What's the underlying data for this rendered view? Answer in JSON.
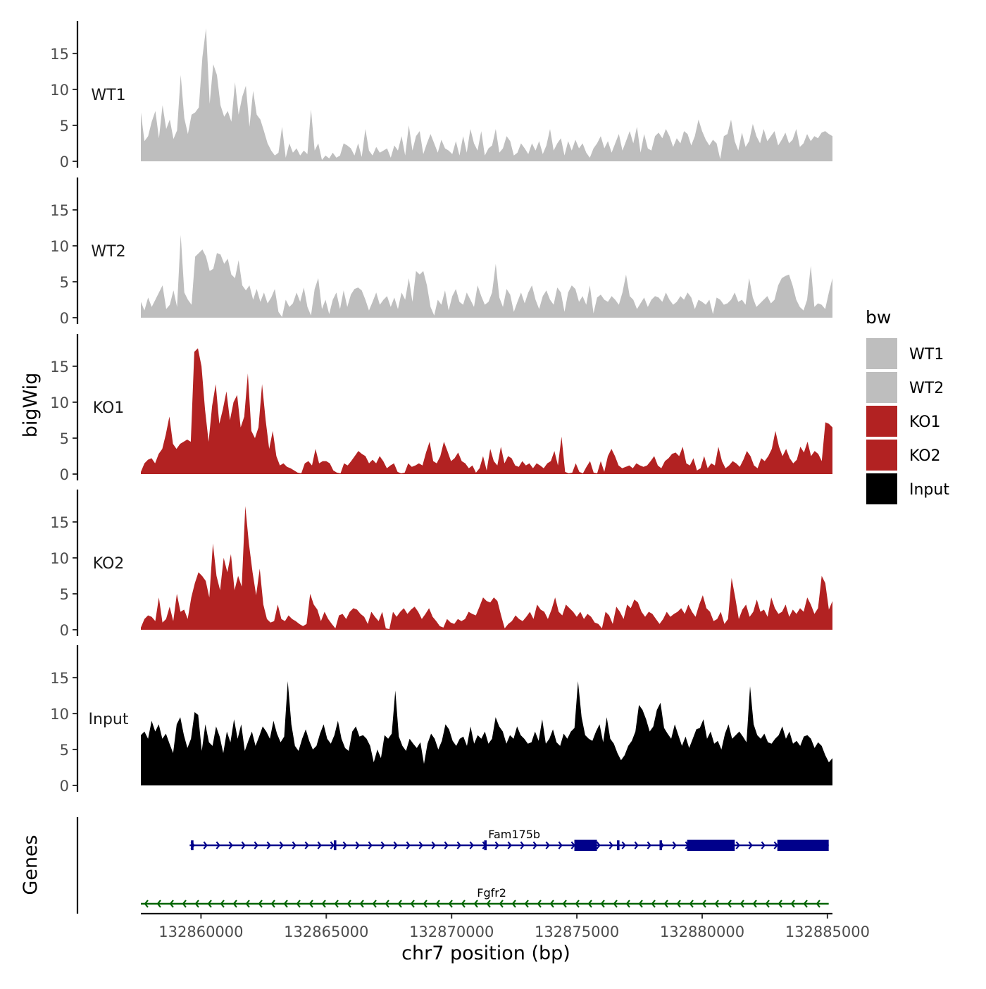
{
  "chart_data": {
    "type": "area",
    "y_axis_label": "bigWig",
    "x_axis_label": "chr7 position (bp)",
    "genes_label": "Genes",
    "legend_title": "bw",
    "x_range": [
      132857600,
      132885200
    ],
    "x_ticks": [
      132860000,
      132865000,
      132870000,
      132875000,
      132880000,
      132885000
    ],
    "x_tick_labels": [
      "132860000",
      "132865000",
      "132870000",
      "132875000",
      "132880000",
      "132885000"
    ],
    "y_range": [
      0,
      19.5
    ],
    "y_ticks": [
      0,
      5,
      10,
      15
    ],
    "y_tick_labels": [
      "0",
      "5",
      "10",
      "15"
    ],
    "series": [
      {
        "name": "WT1",
        "color": "#bebebe",
        "x_start": 132857600,
        "x_end": 132885200,
        "values": [
          6.8,
          2.8,
          3.5,
          5.5,
          7.0,
          3.2,
          7.8,
          4.5,
          5.8,
          3.1,
          4.3,
          12.0,
          6.0,
          3.8,
          6.5,
          6.8,
          7.5,
          14.5,
          18.5,
          8.0,
          13.5,
          12.0,
          7.8,
          6.2,
          7.0,
          5.5,
          11.0,
          6.5,
          9.0,
          10.5,
          4.8,
          9.8,
          6.5,
          5.8,
          4.2,
          2.5,
          1.5,
          0.8,
          1.2,
          4.8,
          0.5,
          2.5,
          1.2,
          1.8,
          0.8,
          1.5,
          1.0,
          7.2,
          1.5,
          2.5,
          0.2,
          0.8,
          0.4,
          1.2,
          0.5,
          0.8,
          2.5,
          2.2,
          1.8,
          0.8,
          2.5,
          0.6,
          4.5,
          1.5,
          0.8,
          2.0,
          1.2,
          1.5,
          1.8,
          0.5,
          2.2,
          1.5,
          3.5,
          0.8,
          5.0,
          1.5,
          3.5,
          4.2,
          1.0,
          2.5,
          3.8,
          2.5,
          1.2,
          3.0,
          1.8,
          1.5,
          1.0,
          2.8,
          0.8,
          3.5,
          1.2,
          4.5,
          2.5,
          1.5,
          4.2,
          0.8,
          1.8,
          2.2,
          4.5,
          1.2,
          1.8,
          3.5,
          2.8,
          0.8,
          1.2,
          2.5,
          1.8,
          1.0,
          2.5,
          1.5,
          2.8,
          1.0,
          2.2,
          4.5,
          1.5,
          2.5,
          3.2,
          0.8,
          2.8,
          1.5,
          3.0,
          1.8,
          2.5,
          1.2,
          0.5,
          1.8,
          2.5,
          3.5,
          1.8,
          2.8,
          1.2,
          2.5,
          3.8,
          1.5,
          2.8,
          4.2,
          2.5,
          4.8,
          1.2,
          3.8,
          1.8,
          1.5,
          3.5,
          4.0,
          3.2,
          4.5,
          3.5,
          2.0,
          3.2,
          2.5,
          4.2,
          3.8,
          2.2,
          3.5,
          5.8,
          4.2,
          3.0,
          2.2,
          3.0,
          2.5,
          0.3,
          3.5,
          3.8,
          5.8,
          2.8,
          1.5,
          4.0,
          2.0,
          2.8,
          5.2,
          3.5,
          2.5,
          4.5,
          2.8,
          3.5,
          4.2,
          2.2,
          3.0,
          4.0,
          2.5,
          3.0,
          4.5,
          2.0,
          2.5,
          3.8,
          2.8,
          3.5,
          3.2,
          4.0,
          4.2,
          3.8,
          3.5
        ]
      },
      {
        "name": "WT2",
        "color": "#bebebe",
        "x_start": 132857600,
        "x_end": 132885200,
        "values": [
          2.2,
          1.0,
          2.8,
          1.5,
          2.5,
          3.5,
          4.5,
          1.2,
          1.8,
          3.8,
          1.5,
          11.5,
          3.5,
          2.5,
          1.8,
          8.5,
          9.0,
          9.5,
          8.5,
          6.5,
          6.8,
          9.0,
          8.8,
          7.5,
          8.2,
          6.0,
          5.5,
          8.0,
          4.5,
          3.8,
          4.5,
          2.5,
          4.0,
          2.2,
          3.5,
          2.0,
          2.8,
          4.0,
          0.8,
          0.1,
          2.5,
          1.5,
          2.0,
          3.5,
          2.2,
          4.2,
          1.5,
          0.3,
          4.0,
          5.5,
          1.2,
          2.5,
          0.5,
          2.5,
          3.5,
          1.2,
          3.8,
          1.5,
          3.2,
          4.0,
          4.2,
          3.8,
          2.5,
          1.0,
          2.2,
          3.5,
          1.8,
          2.5,
          3.0,
          1.5,
          2.8,
          1.2,
          3.5,
          2.5,
          5.5,
          2.2,
          6.5,
          6.0,
          6.5,
          4.5,
          1.5,
          0.3,
          2.5,
          1.8,
          3.8,
          1.0,
          3.0,
          4.0,
          2.2,
          1.8,
          3.5,
          2.5,
          1.5,
          4.5,
          3.0,
          1.8,
          2.2,
          3.5,
          7.5,
          2.8,
          1.5,
          4.0,
          3.2,
          0.8,
          2.2,
          3.5,
          2.0,
          3.5,
          4.5,
          2.5,
          1.2,
          3.0,
          3.8,
          2.5,
          1.8,
          4.2,
          3.5,
          0.8,
          3.5,
          4.5,
          4.0,
          2.2,
          3.0,
          1.8,
          4.5,
          0.6,
          2.8,
          3.2,
          2.5,
          2.2,
          3.0,
          2.5,
          1.8,
          3.5,
          6.0,
          3.0,
          2.5,
          1.2,
          2.0,
          2.8,
          1.5,
          2.5,
          3.0,
          2.8,
          2.2,
          3.5,
          2.5,
          1.8,
          2.2,
          3.0,
          2.5,
          3.5,
          2.8,
          1.2,
          2.5,
          2.2,
          1.8,
          2.5,
          0.5,
          2.8,
          2.5,
          1.8,
          2.0,
          2.5,
          3.5,
          2.2,
          2.5,
          1.8,
          5.5,
          2.8,
          1.5,
          2.0,
          2.5,
          3.0,
          2.0,
          2.5,
          4.5,
          5.5,
          5.8,
          6.0,
          4.5,
          2.5,
          1.5,
          1.0,
          2.5,
          7.2,
          1.5,
          2.0,
          1.8,
          1.2,
          3.5,
          5.5
        ]
      },
      {
        "name": "KO1",
        "color": "#b22222",
        "x_start": 132857600,
        "x_end": 132885200,
        "values": [
          0.3,
          1.5,
          2.0,
          2.2,
          1.5,
          2.8,
          3.5,
          5.5,
          8.0,
          4.2,
          3.5,
          4.2,
          4.5,
          4.8,
          4.5,
          17.0,
          17.5,
          15.0,
          9.0,
          4.5,
          9.5,
          12.5,
          7.0,
          9.0,
          11.5,
          7.5,
          10.0,
          11.0,
          6.5,
          8.0,
          14.0,
          6.0,
          5.0,
          6.5,
          12.5,
          7.5,
          3.5,
          6.0,
          2.5,
          1.2,
          1.5,
          1.0,
          0.8,
          0.5,
          0.2,
          0.1,
          1.5,
          1.8,
          1.2,
          3.5,
          1.5,
          1.8,
          1.8,
          1.5,
          0.5,
          0.2,
          0.1,
          1.5,
          1.2,
          1.8,
          2.5,
          3.2,
          2.8,
          2.5,
          1.5,
          2.0,
          1.5,
          2.5,
          1.8,
          0.8,
          1.2,
          1.5,
          0.3,
          0.1,
          0.2,
          1.5,
          1.0,
          1.2,
          1.5,
          1.2,
          3.0,
          4.5,
          1.8,
          1.5,
          2.5,
          4.5,
          3.2,
          1.8,
          2.2,
          3.0,
          1.8,
          1.5,
          0.8,
          1.2,
          0.2,
          0.8,
          2.5,
          0.5,
          3.5,
          1.8,
          1.2,
          3.8,
          1.5,
          2.5,
          2.2,
          1.2,
          1.0,
          1.8,
          1.2,
          1.5,
          0.8,
          1.5,
          1.2,
          0.8,
          1.5,
          1.8,
          3.2,
          1.2,
          5.2,
          0.3,
          0.1,
          0.2,
          1.5,
          0.3,
          0.1,
          1.0,
          1.8,
          0.2,
          0.1,
          1.8,
          0.3,
          2.5,
          3.5,
          2.5,
          1.2,
          0.8,
          1.0,
          1.2,
          0.8,
          1.5,
          1.2,
          1.0,
          1.2,
          1.8,
          2.5,
          1.2,
          0.8,
          1.8,
          2.2,
          2.8,
          3.0,
          2.5,
          3.8,
          1.5,
          1.2,
          2.2,
          0.5,
          0.8,
          2.5,
          0.8,
          1.5,
          1.2,
          3.8,
          1.8,
          0.8,
          1.2,
          1.8,
          1.5,
          1.0,
          2.0,
          3.2,
          2.5,
          1.2,
          0.8,
          2.2,
          1.8,
          2.5,
          3.5,
          6.0,
          3.8,
          2.5,
          3.5,
          2.2,
          1.5,
          2.0,
          3.8,
          3.0,
          4.5,
          2.5,
          3.2,
          2.8,
          1.8,
          7.2,
          7.0,
          6.5
        ]
      },
      {
        "name": "KO2",
        "color": "#b22222",
        "x_start": 132857600,
        "x_end": 132885200,
        "values": [
          0.3,
          1.5,
          2.0,
          1.8,
          1.2,
          4.5,
          1.0,
          1.5,
          3.2,
          1.2,
          5.0,
          2.5,
          2.8,
          1.5,
          4.5,
          6.5,
          8.0,
          7.5,
          6.8,
          4.5,
          12.0,
          7.5,
          5.5,
          10.0,
          8.0,
          10.5,
          5.5,
          7.5,
          6.0,
          17.2,
          12.0,
          8.0,
          4.8,
          8.5,
          3.5,
          1.5,
          1.0,
          1.2,
          3.5,
          1.5,
          1.2,
          2.0,
          1.5,
          1.2,
          0.8,
          0.5,
          0.8,
          5.0,
          3.5,
          2.8,
          1.2,
          2.5,
          1.5,
          0.8,
          0.2,
          2.0,
          2.2,
          1.5,
          2.5,
          3.0,
          2.8,
          2.2,
          1.8,
          0.8,
          2.5,
          1.8,
          1.2,
          2.5,
          0.2,
          0.1,
          2.5,
          1.8,
          2.5,
          3.0,
          2.2,
          2.8,
          3.2,
          2.5,
          1.5,
          2.2,
          3.0,
          1.8,
          1.2,
          0.5,
          0.3,
          1.5,
          1.0,
          0.8,
          1.5,
          1.2,
          1.5,
          2.5,
          2.2,
          2.0,
          3.2,
          4.5,
          4.0,
          3.8,
          4.5,
          4.0,
          2.0,
          0.2,
          0.8,
          1.2,
          2.0,
          1.5,
          1.2,
          1.8,
          2.5,
          1.5,
          3.5,
          2.8,
          2.5,
          1.5,
          2.8,
          4.5,
          2.5,
          2.0,
          3.5,
          3.0,
          2.5,
          1.8,
          2.5,
          1.5,
          2.2,
          1.8,
          1.0,
          0.8,
          0.2,
          2.5,
          2.0,
          0.8,
          3.2,
          2.5,
          1.5,
          3.5,
          3.0,
          4.2,
          3.8,
          2.5,
          1.8,
          2.5,
          2.2,
          1.5,
          0.8,
          1.5,
          2.5,
          1.8,
          2.2,
          2.5,
          3.0,
          2.2,
          3.5,
          2.5,
          1.8,
          3.5,
          4.8,
          3.0,
          2.5,
          1.2,
          1.5,
          2.5,
          0.8,
          1.5,
          7.2,
          4.5,
          1.5,
          2.8,
          3.5,
          1.8,
          2.5,
          4.2,
          2.5,
          2.8,
          1.8,
          4.5,
          3.0,
          2.2,
          2.5,
          3.5,
          1.8,
          2.8,
          2.2,
          3.0,
          2.5,
          4.5,
          3.5,
          2.2,
          3.0,
          7.5,
          6.5,
          2.8,
          4.0
        ]
      },
      {
        "name": "Input",
        "color": "#000000",
        "x_start": 132857600,
        "x_end": 132885200,
        "values": [
          7.0,
          7.5,
          6.5,
          9.0,
          7.5,
          8.5,
          6.5,
          7.2,
          5.8,
          4.5,
          8.5,
          9.5,
          7.0,
          5.2,
          6.5,
          10.2,
          9.8,
          4.8,
          8.5,
          6.0,
          5.5,
          8.2,
          6.8,
          4.5,
          7.5,
          6.0,
          9.2,
          6.5,
          8.5,
          4.8,
          6.2,
          7.5,
          5.5,
          6.8,
          8.2,
          7.5,
          6.5,
          9.0,
          7.2,
          6.0,
          6.8,
          14.5,
          8.5,
          5.5,
          4.8,
          6.5,
          7.8,
          6.2,
          5.0,
          5.5,
          7.2,
          8.5,
          6.5,
          5.8,
          7.0,
          9.0,
          6.5,
          5.2,
          4.8,
          7.5,
          8.2,
          6.8,
          7.0,
          6.5,
          5.5,
          3.2,
          5.0,
          3.8,
          7.0,
          6.5,
          7.2,
          13.2,
          6.8,
          5.5,
          4.8,
          6.5,
          5.8,
          5.2,
          6.0,
          3.0,
          5.8,
          7.2,
          6.5,
          5.0,
          6.2,
          8.5,
          7.8,
          6.2,
          5.5,
          6.5,
          6.8,
          5.5,
          8.2,
          5.8,
          7.0,
          6.5,
          7.5,
          5.8,
          6.5,
          9.5,
          8.2,
          7.5,
          5.8,
          7.0,
          6.5,
          8.2,
          7.0,
          6.5,
          5.8,
          6.0,
          7.5,
          6.2,
          9.2,
          5.8,
          6.5,
          7.8,
          6.0,
          5.5,
          7.2,
          6.5,
          7.5,
          8.0,
          14.5,
          9.5,
          7.0,
          6.5,
          6.2,
          7.5,
          8.5,
          6.0,
          9.5,
          6.5,
          5.8,
          4.5,
          3.5,
          4.2,
          5.5,
          6.2,
          7.5,
          11.2,
          10.5,
          9.2,
          7.5,
          8.2,
          10.5,
          11.5,
          8.0,
          7.2,
          6.5,
          8.5,
          7.0,
          5.5,
          6.8,
          5.2,
          6.5,
          7.8,
          8.0,
          9.2,
          6.5,
          7.5,
          5.8,
          6.2,
          5.0,
          7.2,
          8.5,
          6.5,
          7.0,
          7.5,
          6.8,
          6.0,
          13.8,
          8.5,
          7.0,
          6.5,
          7.2,
          6.0,
          5.8,
          6.5,
          7.0,
          8.2,
          6.5,
          7.5,
          5.8,
          6.2,
          5.5,
          6.8,
          7.0,
          6.5,
          5.2,
          6.0,
          5.5,
          4.2,
          3.2,
          3.8
        ]
      }
    ],
    "genes": [
      {
        "name": "Fam175b",
        "strand": "+",
        "color": "#00008b",
        "start": 132859550,
        "end": 132885050,
        "label_pos": 132872500,
        "exons": [
          [
            132859600,
            132859700
          ],
          [
            132865300,
            132865400
          ],
          [
            132871300,
            132871400
          ],
          [
            132874900,
            132875800
          ],
          [
            132876600,
            132876700
          ],
          [
            132878300,
            132878400
          ],
          [
            132879400,
            132881300
          ],
          [
            132883000,
            132885050
          ]
        ]
      },
      {
        "name": "Fgfr2",
        "strand": "-",
        "color": "#006400",
        "start": 132857600,
        "end": 132885050,
        "label_pos": 132871600,
        "exons": []
      }
    ]
  }
}
